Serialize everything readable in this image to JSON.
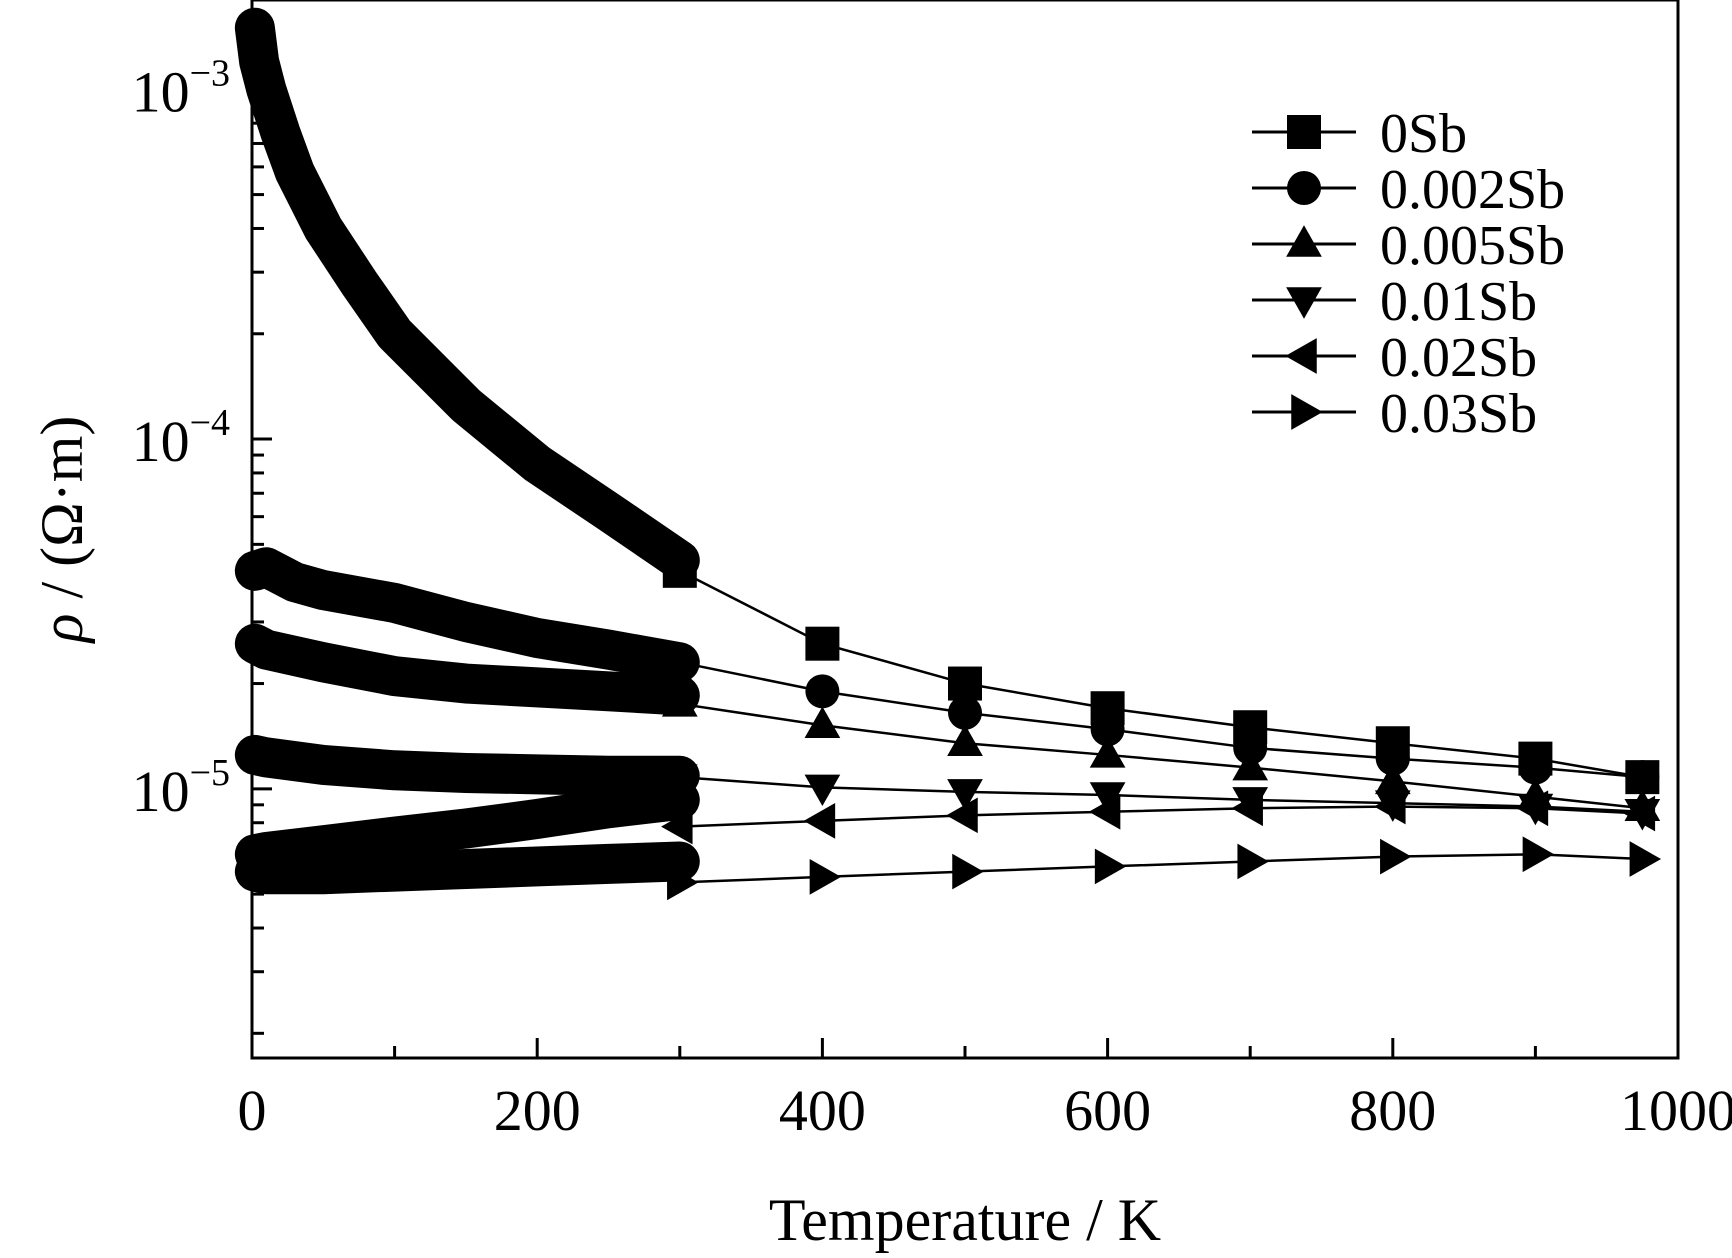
{
  "chart_data": {
    "type": "line",
    "xlabel": "Temperature / K",
    "ylabel_symbol": "ρ",
    "ylabel_unit": " / (Ω·m)",
    "xlim": [
      0,
      1000
    ],
    "ylim": [
      1.7e-06,
      0.0018
    ],
    "yscale": "log",
    "x_ticks": [
      0,
      200,
      400,
      600,
      800,
      1000
    ],
    "x_tick_labels": [
      "0",
      "200",
      "400",
      "600",
      "800",
      "1000"
    ],
    "y_major_ticks": [
      {
        "base": "10",
        "exp": "−3",
        "value": 0.001
      },
      {
        "base": "10",
        "exp": "−4",
        "value": 0.0001
      },
      {
        "base": "10",
        "exp": "−5",
        "value": 1e-05
      }
    ],
    "legend_position": "top-right",
    "series": [
      {
        "name": "0Sb",
        "marker": "square",
        "dense_x": [
          2,
          5,
          10,
          20,
          30,
          50,
          75,
          100,
          150,
          200,
          250,
          300
        ],
        "dense_y": [
          0.0015,
          0.0012,
          0.001,
          0.00075,
          0.00058,
          0.0004,
          0.00028,
          0.0002,
          0.000125,
          8.5e-05,
          6.2e-05,
          4.5e-05
        ],
        "x": [
          300,
          400,
          500,
          600,
          700,
          800,
          900,
          975
        ],
        "y": [
          4.2e-05,
          2.6e-05,
          2e-05,
          1.7e-05,
          1.5e-05,
          1.35e-05,
          1.22e-05,
          1.08e-05
        ]
      },
      {
        "name": "0.002Sb",
        "marker": "circle",
        "dense_x": [
          2,
          10,
          30,
          50,
          100,
          150,
          200,
          250,
          300
        ],
        "dense_y": [
          4.2e-05,
          4.3e-05,
          3.9e-05,
          3.7e-05,
          3.4e-05,
          3e-05,
          2.7e-05,
          2.5e-05,
          2.3e-05
        ],
        "x": [
          300,
          400,
          500,
          600,
          700,
          800,
          900,
          975
        ],
        "y": [
          2.3e-05,
          1.9e-05,
          1.65e-05,
          1.48e-05,
          1.31e-05,
          1.22e-05,
          1.15e-05,
          1.08e-05
        ]
      },
      {
        "name": "0.005Sb",
        "marker": "triangle-up",
        "dense_x": [
          2,
          10,
          50,
          100,
          150,
          200,
          250,
          300
        ],
        "dense_y": [
          2.6e-05,
          2.5e-05,
          2.3e-05,
          2.1e-05,
          2e-05,
          1.95e-05,
          1.9e-05,
          1.85e-05
        ],
        "x": [
          300,
          400,
          500,
          600,
          700,
          800,
          900,
          975
        ],
        "y": [
          1.75e-05,
          1.52e-05,
          1.35e-05,
          1.25e-05,
          1.15e-05,
          1.05e-05,
          9.5e-06,
          8.8e-06
        ]
      },
      {
        "name": "0.01Sb",
        "marker": "triangle-down",
        "dense_x": [
          2,
          10,
          50,
          100,
          150,
          200,
          250,
          300
        ],
        "dense_y": [
          1.25e-05,
          1.23e-05,
          1.17e-05,
          1.13e-05,
          1.11e-05,
          1.1e-05,
          1.09e-05,
          1.09e-05
        ],
        "x": [
          300,
          400,
          500,
          600,
          700,
          800,
          900,
          975
        ],
        "y": [
          1.08e-05,
          1.01e-05,
          9.8e-06,
          9.6e-06,
          9.3e-06,
          9.1e-06,
          8.9e-06,
          8.6e-06
        ]
      },
      {
        "name": "0.02Sb",
        "marker": "triangle-left",
        "dense_x": [
          2,
          10,
          50,
          100,
          150,
          200,
          250,
          300
        ],
        "dense_y": [
          6.5e-06,
          6.6e-06,
          6.9e-06,
          7.3e-06,
          7.7e-06,
          8.2e-06,
          8.8e-06,
          9.3e-06
        ],
        "x": [
          300,
          400,
          500,
          600,
          700,
          800,
          900,
          975
        ],
        "y": [
          7.8e-06,
          8.1e-06,
          8.4e-06,
          8.6e-06,
          8.8e-06,
          8.9e-06,
          8.8e-06,
          8.5e-06
        ]
      },
      {
        "name": "0.03Sb",
        "marker": "triangle-right",
        "dense_x": [
          2,
          10,
          50,
          100,
          150,
          200,
          250,
          300
        ],
        "dense_y": [
          5.8e-06,
          5.7e-06,
          5.7e-06,
          5.8e-06,
          5.9e-06,
          6e-06,
          6.1e-06,
          6.2e-06
        ],
        "x": [
          300,
          400,
          500,
          600,
          700,
          800,
          900,
          975
        ],
        "y": [
          5.4e-06,
          5.6e-06,
          5.8e-06,
          6e-06,
          6.2e-06,
          6.4e-06,
          6.5e-06,
          6.3e-06
        ]
      }
    ]
  }
}
